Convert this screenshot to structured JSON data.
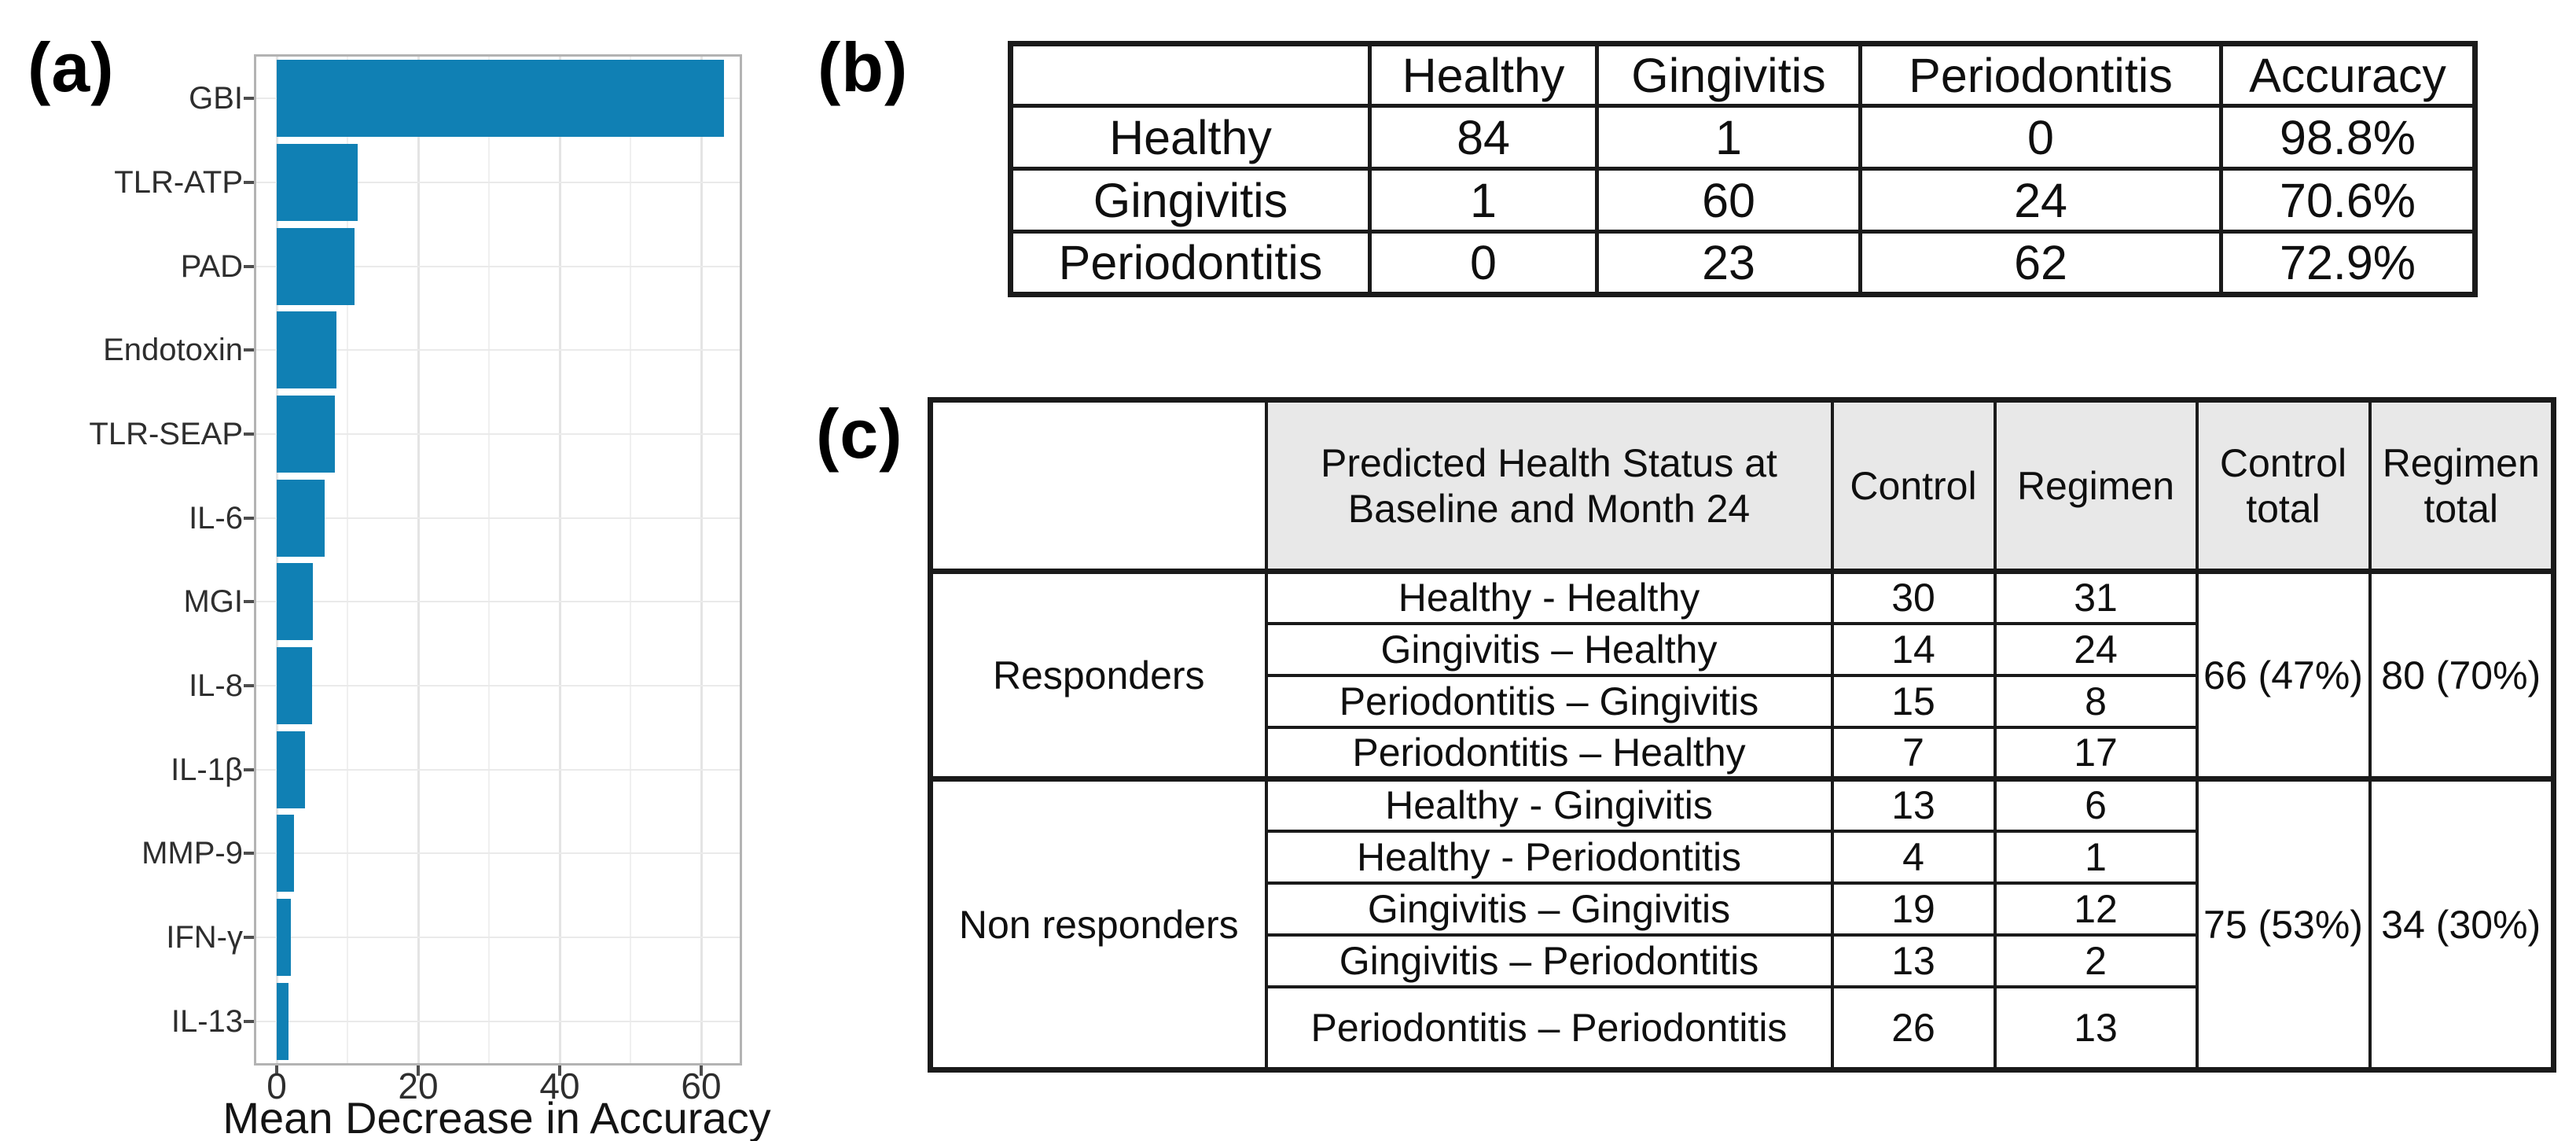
{
  "figure_labels": {
    "a": "(a)",
    "b": "(b)",
    "c": "(c)"
  },
  "chart_data": [
    {
      "id": "feature-importance-bar-chart",
      "type": "bar",
      "orientation": "horizontal",
      "title": "",
      "xlabel": "Mean Decrease in Accuracy",
      "ylabel": "",
      "categories": [
        "GBI",
        "TLR-ATP",
        "PAD",
        "Endotoxin",
        "TLR-SEAP",
        "IL-6",
        "MGI",
        "IL-8",
        "IL-1β",
        "MMP-9",
        "IFN-γ",
        "IL-13"
      ],
      "values": [
        63.2,
        11.4,
        11.0,
        8.4,
        8.2,
        6.8,
        5.1,
        5.0,
        4.0,
        2.4,
        2.0,
        1.7
      ],
      "x_ticks": [
        0,
        20,
        40,
        60
      ],
      "x_minor_gridlines": [
        10,
        30,
        50
      ],
      "xlim": [
        -3,
        65.5
      ],
      "grid": true,
      "legend": false,
      "bar_color": "#1080b4",
      "panel_border_color": "#b3b3b3"
    },
    {
      "id": "confusion-matrix-table",
      "type": "table",
      "headers": [
        "",
        "Healthy",
        "Gingivitis",
        "Periodontitis",
        "Accuracy"
      ],
      "rows": [
        [
          "Healthy",
          "84",
          "1",
          "0",
          "98.8%"
        ],
        [
          "Gingivitis",
          "1",
          "60",
          "24",
          "70.6%"
        ],
        [
          "Periodontitis",
          "0",
          "23",
          "62",
          "72.9%"
        ]
      ]
    },
    {
      "id": "longitudinal-outcome-table",
      "type": "table",
      "header_bg": "#e8e8e8",
      "headers": [
        "",
        "Predicted Health Status at Baseline and Month 24",
        "Control",
        "Regimen",
        "Control total",
        "Regimen total"
      ],
      "groups": [
        {
          "label": "Responders",
          "control_total": "66 (47%)",
          "regimen_total": "80 (70%)",
          "rows": [
            [
              "Healthy - Healthy",
              "30",
              "31"
            ],
            [
              "Gingivitis – Healthy",
              "14",
              "24"
            ],
            [
              "Periodontitis – Gingivitis",
              "15",
              "8"
            ],
            [
              "Periodontitis – Healthy",
              "7",
              "17"
            ]
          ]
        },
        {
          "label": "Non responders",
          "control_total": "75 (53%)",
          "regimen_total": "34 (30%)",
          "rows": [
            [
              "Healthy - Gingivitis",
              "13",
              "6"
            ],
            [
              "Healthy - Periodontitis",
              "4",
              "1"
            ],
            [
              "Gingivitis – Gingivitis",
              "19",
              "12"
            ],
            [
              "Gingivitis – Periodontitis",
              "13",
              "2"
            ],
            [
              "Periodontitis – Periodontitis",
              "26",
              "13"
            ]
          ]
        }
      ]
    }
  ]
}
